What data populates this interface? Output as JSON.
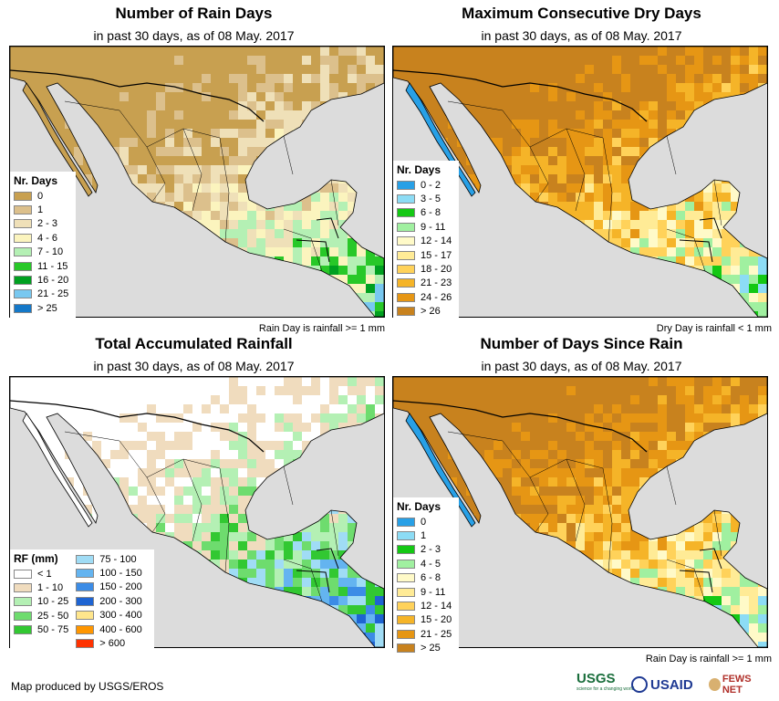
{
  "panels": [
    {
      "title": "Number of Rain Days",
      "subtitle": "in past 30 days, as of 08 May. 2017",
      "note": "Rain Day is rainfall >= 1 mm",
      "legend": {
        "title": "Nr. Days",
        "items": [
          {
            "label": "0",
            "color": "#c8a050"
          },
          {
            "label": "1",
            "color": "#dcc08c"
          },
          {
            "label": "2 - 3",
            "color": "#efe0b8"
          },
          {
            "label": "4 - 6",
            "color": "#fbf4be"
          },
          {
            "label": "7 - 10",
            "color": "#b4f0b4"
          },
          {
            "label": "11 - 15",
            "color": "#28c828"
          },
          {
            "label": "16 - 20",
            "color": "#00a020"
          },
          {
            "label": "21 - 25",
            "color": "#78c8f0"
          },
          {
            "label": "> 25",
            "color": "#1478c8"
          }
        ]
      }
    },
    {
      "title": "Maximum Consecutive Dry Days",
      "subtitle": "in past 30 days, as of 08 May. 2017",
      "note": "Dry Day is rainfall < 1 mm",
      "legend": {
        "title": "Nr. Days",
        "items": [
          {
            "label": "0 - 2",
            "color": "#28a0e6"
          },
          {
            "label": "3 - 5",
            "color": "#8cdcf5"
          },
          {
            "label": "6 - 8",
            "color": "#14c814"
          },
          {
            "label": "9 - 11",
            "color": "#a0f0a0"
          },
          {
            "label": "12 - 14",
            "color": "#fffac8"
          },
          {
            "label": "15 - 17",
            "color": "#ffeb96"
          },
          {
            "label": "18 - 20",
            "color": "#ffd25a"
          },
          {
            "label": "21 - 23",
            "color": "#f5b428"
          },
          {
            "label": "24 - 26",
            "color": "#e69614"
          },
          {
            "label": "> 26",
            "color": "#c8821e"
          }
        ]
      }
    },
    {
      "title": "Total Accumulated Rainfall",
      "subtitle": "in past 30 days, as of 08 May. 2017",
      "note": "",
      "legend": {
        "title": "RF (mm)",
        "items": [
          {
            "label": "< 1",
            "color": "#ffffff"
          },
          {
            "label": "1 - 10",
            "color": "#f0dcbe"
          },
          {
            "label": "10 - 25",
            "color": "#b4f0b4"
          },
          {
            "label": "25 - 50",
            "color": "#6edc6e"
          },
          {
            "label": "50 - 75",
            "color": "#32c832"
          }
        ],
        "items2": [
          {
            "label": "75 - 100",
            "color": "#a0dcf5"
          },
          {
            "label": "100 - 150",
            "color": "#64b4f0"
          },
          {
            "label": "150 - 200",
            "color": "#3c8ce6"
          },
          {
            "label": "200 - 300",
            "color": "#1e64d2"
          },
          {
            "label": "300 - 400",
            "color": "#ffe68c"
          },
          {
            "label": "400 - 600",
            "color": "#ff9600"
          },
          {
            "label": "> 600",
            "color": "#ff3200"
          }
        ]
      }
    },
    {
      "title": "Number of Days Since Rain",
      "subtitle": "in past 30 days, as of 08 May. 2017",
      "note": "Rain Day is rainfall >= 1 mm",
      "legend": {
        "title": "Nr. Days",
        "items": [
          {
            "label": "0",
            "color": "#28a0e6"
          },
          {
            "label": "1",
            "color": "#8cdcf5"
          },
          {
            "label": "2 - 3",
            "color": "#14c814"
          },
          {
            "label": "4 - 5",
            "color": "#a0f0a0"
          },
          {
            "label": "6 - 8",
            "color": "#fffac8"
          },
          {
            "label": "9 - 11",
            "color": "#ffeb96"
          },
          {
            "label": "12 - 14",
            "color": "#ffd25a"
          },
          {
            "label": "15 - 20",
            "color": "#f5b428"
          },
          {
            "label": "21 - 25",
            "color": "#e69614"
          },
          {
            "label": "> 25",
            "color": "#c8821e"
          }
        ]
      }
    }
  ],
  "footer": {
    "credit": "Map produced by USGS/EROS",
    "logos": [
      "USGS",
      "USAID",
      "FEWS NET"
    ],
    "usgs_tagline": "science for a changing world"
  },
  "colors": {
    "ocean": "#dcdcdc",
    "border": "#000000"
  }
}
